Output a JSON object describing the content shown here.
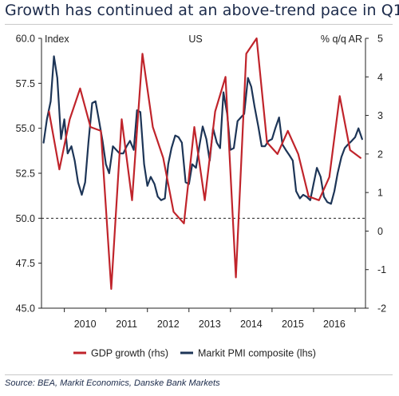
{
  "title": "Growth has continued at an above-trend pace in Q1",
  "source": "Source: BEA, Markit Economics, Danske Bank Markets",
  "colors": {
    "gdp": "#c0242b",
    "pmi": "#1d3557",
    "text": "#222222",
    "title": "#1b2a4a"
  },
  "chart_data": {
    "type": "line",
    "title": "US",
    "left_axis_label": "Index",
    "right_axis_label": "% q/q AR",
    "left_ylim": [
      45.0,
      60.0
    ],
    "right_ylim": [
      -2,
      5
    ],
    "left_ticks": [
      "45.0",
      "47.5",
      "50.0",
      "52.5",
      "55.0",
      "57.5",
      "60.0"
    ],
    "right_ticks": [
      "-2",
      "-1",
      "0",
      "1",
      "2",
      "3",
      "4",
      "5"
    ],
    "x_tick_labels": [
      "2010",
      "2011",
      "2012",
      "2013",
      "2014",
      "2015",
      "2016"
    ],
    "reference_line": {
      "axis": "left",
      "value": 50.0,
      "style": "dashed"
    },
    "grid": false,
    "legend_position": "bottom",
    "series": [
      {
        "name": "GDP growth (rhs)",
        "axis": "right",
        "x": [
          2009.63,
          2009.88,
          2010.13,
          2010.38,
          2010.63,
          2010.88,
          2011.13,
          2011.38,
          2011.63,
          2011.88,
          2012.13,
          2012.38,
          2012.63,
          2012.88,
          2013.13,
          2013.38,
          2013.63,
          2013.88,
          2014.13,
          2014.38,
          2014.63,
          2014.88,
          2015.13,
          2015.38,
          2015.63,
          2015.88,
          2016.13,
          2016.38,
          2016.63,
          2016.88,
          2017.13
        ],
        "values": [
          3.1,
          1.6,
          2.9,
          3.7,
          2.7,
          2.6,
          -1.5,
          2.9,
          0.8,
          4.6,
          2.7,
          1.9,
          0.5,
          0.2,
          2.7,
          0.8,
          3.1,
          4.0,
          -1.2,
          4.6,
          5.0,
          2.3,
          2.0,
          2.6,
          2.0,
          0.9,
          0.8,
          1.4,
          3.5,
          2.1,
          1.9
        ],
        "note": "values approximate, read from chart"
      },
      {
        "name": "Markit PMI composite (lhs)",
        "axis": "left",
        "x": [
          2009.5,
          2009.58,
          2009.67,
          2009.75,
          2009.83,
          2009.92,
          2010.0,
          2010.08,
          2010.17,
          2010.25,
          2010.33,
          2010.42,
          2010.5,
          2010.58,
          2010.67,
          2010.75,
          2010.83,
          2010.92,
          2011.0,
          2011.08,
          2011.17,
          2011.25,
          2011.33,
          2011.42,
          2011.5,
          2011.58,
          2011.67,
          2011.75,
          2011.83,
          2011.92,
          2012.0,
          2012.08,
          2012.17,
          2012.25,
          2012.33,
          2012.42,
          2012.5,
          2012.58,
          2012.67,
          2012.75,
          2012.83,
          2012.92,
          2013.0,
          2013.08,
          2013.17,
          2013.25,
          2013.33,
          2013.42,
          2013.5,
          2013.58,
          2013.67,
          2013.75,
          2013.83,
          2013.92,
          2014.0,
          2014.08,
          2014.17,
          2014.25,
          2014.33,
          2014.42,
          2014.5,
          2014.58,
          2014.67,
          2014.75,
          2014.83,
          2014.92,
          2015.0,
          2015.08,
          2015.17,
          2015.25,
          2015.33,
          2015.42,
          2015.5,
          2015.58,
          2015.67,
          2015.75,
          2015.83,
          2015.92,
          2016.0,
          2016.08,
          2016.17,
          2016.25,
          2016.33,
          2016.42,
          2016.5,
          2016.58,
          2016.67,
          2016.75,
          2016.83,
          2016.92,
          2017.0,
          2017.08,
          2017.17
        ],
        "values": [
          54.2,
          55.5,
          56.5,
          59.0,
          57.8,
          54.4,
          55.5,
          53.6,
          54.0,
          53.2,
          52.0,
          51.3,
          52.0,
          54.2,
          56.4,
          56.5,
          55.5,
          54.3,
          53.0,
          52.5,
          54.0,
          53.8,
          53.6,
          53.6,
          54.0,
          54.3,
          53.8,
          56.0,
          55.9,
          53.0,
          51.8,
          52.3,
          51.9,
          51.2,
          51.0,
          51.1,
          53.0,
          53.9,
          54.6,
          54.5,
          54.2,
          52.0,
          51.9,
          53.0,
          52.8,
          54.0,
          55.1,
          54.4,
          53.2,
          55.0,
          54.2,
          53.9,
          57.0,
          55.8,
          53.8,
          53.9,
          55.4,
          55.6,
          55.8,
          57.8,
          57.3,
          56.2,
          55.1,
          54.0,
          54.0,
          54.3,
          54.4,
          55.0,
          55.6,
          54.1,
          53.8,
          53.5,
          53.2,
          51.5,
          51.1,
          51.3,
          51.2,
          51.0,
          51.9,
          52.8,
          52.3,
          51.2,
          50.9,
          50.8,
          51.5,
          52.5,
          53.4,
          53.9,
          54.1,
          54.3,
          54.5,
          55.0,
          54.4
        ],
        "note": "values approximate, read from chart"
      }
    ]
  }
}
